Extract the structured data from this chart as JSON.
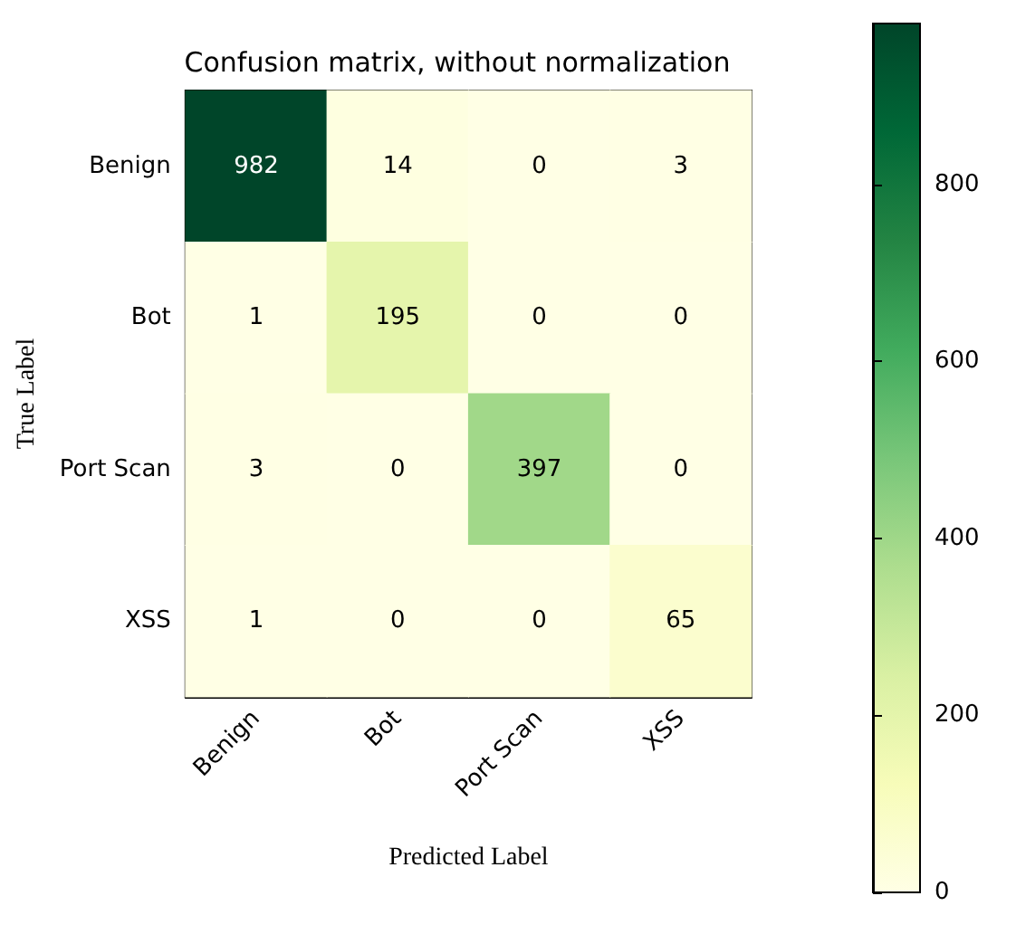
{
  "chart_data": {
    "type": "heatmap",
    "title": "Confusion matrix, without normalization",
    "xlabel": "Predicted Label",
    "ylabel": "True Label",
    "categories": [
      "Benign",
      "Bot",
      "Port Scan",
      "XSS"
    ],
    "y_categories": [
      "Benign",
      "Bot",
      "Port Scan",
      "XSS"
    ],
    "cells": [
      [
        982,
        14,
        0,
        3
      ],
      [
        1,
        195,
        0,
        0
      ],
      [
        3,
        0,
        397,
        0
      ],
      [
        1,
        0,
        0,
        65
      ]
    ],
    "clim": [
      0,
      982
    ],
    "cticks": [
      0,
      200,
      400,
      600,
      800
    ],
    "data_labels": true
  }
}
